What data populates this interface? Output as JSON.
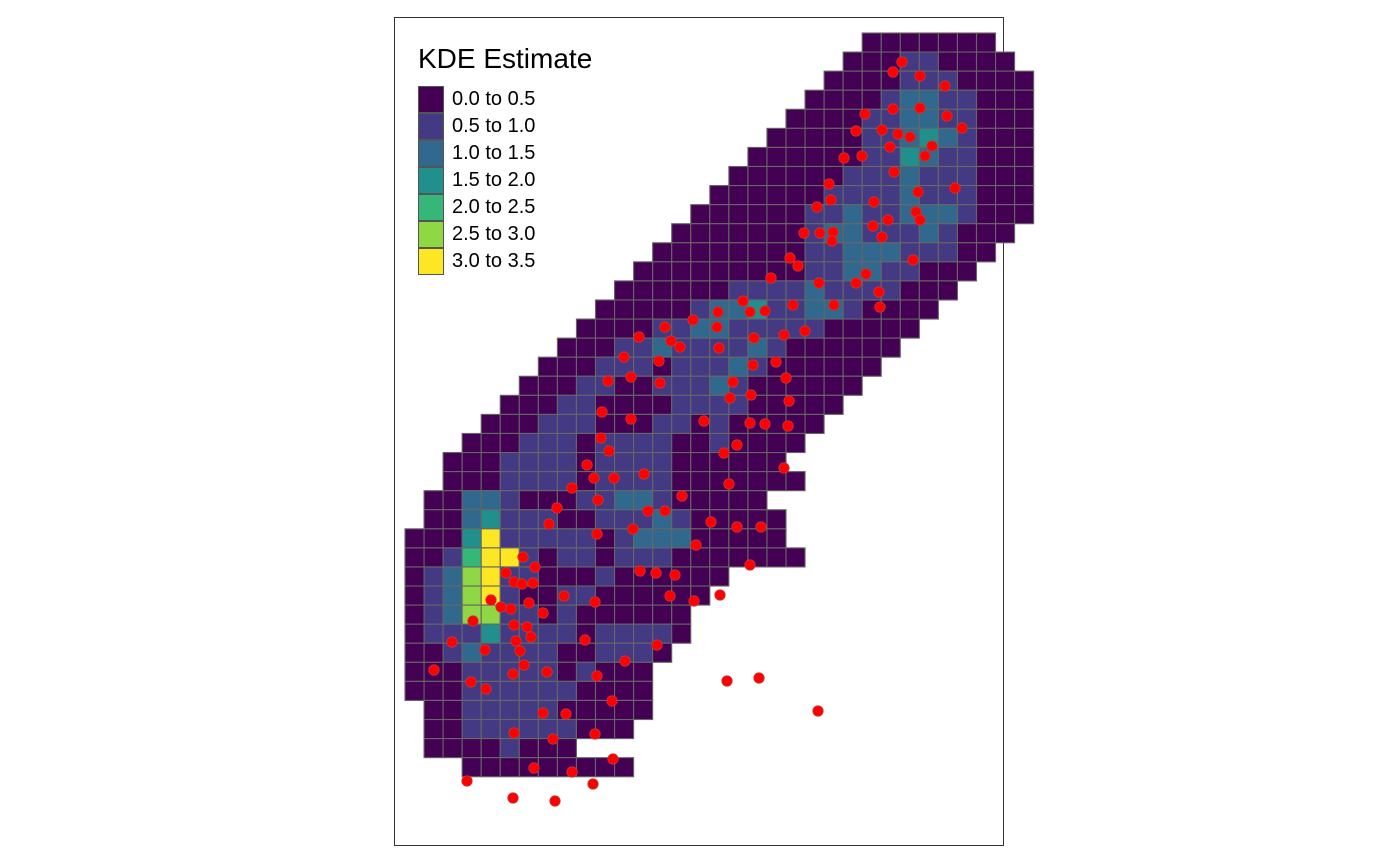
{
  "legend": {
    "title": "KDE Estimate",
    "items": [
      {
        "label": "0.0 to 0.5",
        "color": "#440154"
      },
      {
        "label": "0.5 to 1.0",
        "color": "#443a83"
      },
      {
        "label": "1.0 to 1.5",
        "color": "#31688e"
      },
      {
        "label": "1.5 to 2.0",
        "color": "#21908d"
      },
      {
        "label": "2.0 to 2.5",
        "color": "#35b779"
      },
      {
        "label": "2.5 to 3.0",
        "color": "#8fd744"
      },
      {
        "label": "3.0 to 3.5",
        "color": "#fde725"
      }
    ]
  },
  "map": {
    "grid_border_color": "#666666",
    "point_color": "#ff0000",
    "point_stroke": "#cc3333",
    "rows": [
      {
        "start": 24,
        "cells": "0000000"
      },
      {
        "start": 23,
        "cells": "000110000"
      },
      {
        "start": 22,
        "cells": "00001110000"
      },
      {
        "start": 21,
        "cells": "000012211000"
      },
      {
        "start": 20,
        "cells": "0000112211000"
      },
      {
        "start": 19,
        "cells": "00000112321000"
      },
      {
        "start": 18,
        "cells": "000000113211000"
      },
      {
        "start": 17,
        "cells": "0000001112111000"
      },
      {
        "start": 16,
        "cells": "00000011112111000"
      },
      {
        "start": 15,
        "cells": "000000112112221000"
      },
      {
        "start": 14,
        "cells": "000000012211121000"
      },
      {
        "start": 13,
        "cells": "000000001122211100"
      },
      {
        "start": 12,
        "cells": "000000000112211000"
      },
      {
        "start": 11,
        "cells": "000000111121111000"
      },
      {
        "start": 10,
        "cells": "000001223112210000"
      },
      {
        "start": 9,
        "cells": "000011221111100000"
      },
      {
        "start": 8,
        "cells": "000112111121000000"
      },
      {
        "start": 7,
        "cells": "000111011121000000"
      },
      {
        "start": 6,
        "cells": "000110011121000000"
      },
      {
        "start": 5,
        "cells": "000110000111100000"
      },
      {
        "start": 4,
        "cells": "000111000110100000"
      },
      {
        "start": 3,
        "cells": "000111011110010000"
      },
      {
        "start": 2,
        "cells": "000111101111000000"
      },
      {
        "start": 2,
        "cells": "0001111011110000000"
      },
      {
        "start": 1,
        "cells": "002210001122100000"
      },
      {
        "start": 1,
        "cells": "0023111001112100000"
      },
      {
        "start": 0,
        "cells": "00036111110122200000"
      },
      {
        "start": 0,
        "cells": "001466101101110000000"
      },
      {
        "start": 0,
        "cells": "01256110001000000"
      },
      {
        "start": 0,
        "cells": "0125610011000000"
      },
      {
        "start": 0,
        "cells": "012551101000000"
      },
      {
        "start": 0,
        "cells": "011131111011110"
      },
      {
        "start": 0,
        "cells": "00121111001110"
      },
      {
        "start": 0,
        "cells": "0001111101000"
      },
      {
        "start": 0,
        "cells": "0001111110000"
      },
      {
        "start": 1,
        "cells": "001111100000"
      },
      {
        "start": 1,
        "cells": "00111111000"
      },
      {
        "start": 1,
        "cells": "00001000"
      },
      {
        "start": 3,
        "cells": "000000000"
      }
    ],
    "points": [
      [
        902,
        62
      ],
      [
        893,
        72
      ],
      [
        920,
        76
      ],
      [
        945,
        86
      ],
      [
        893,
        109
      ],
      [
        920,
        108
      ],
      [
        865,
        114
      ],
      [
        947,
        116
      ],
      [
        856,
        131
      ],
      [
        882,
        130
      ],
      [
        898,
        134
      ],
      [
        910,
        137
      ],
      [
        962,
        128
      ],
      [
        890,
        147
      ],
      [
        932,
        146
      ],
      [
        862,
        156
      ],
      [
        844,
        158
      ],
      [
        925,
        156
      ],
      [
        894,
        172
      ],
      [
        829,
        184
      ],
      [
        918,
        192
      ],
      [
        955,
        188
      ],
      [
        831,
        200
      ],
      [
        874,
        202
      ],
      [
        817,
        207
      ],
      [
        916,
        212
      ],
      [
        888,
        220
      ],
      [
        920,
        220
      ],
      [
        873,
        226
      ],
      [
        804,
        233
      ],
      [
        820,
        233
      ],
      [
        833,
        232
      ],
      [
        882,
        237
      ],
      [
        832,
        241
      ],
      [
        790,
        258
      ],
      [
        913,
        260
      ],
      [
        798,
        266
      ],
      [
        866,
        274
      ],
      [
        771,
        278
      ],
      [
        856,
        283
      ],
      [
        819,
        283
      ],
      [
        879,
        292
      ],
      [
        743,
        301
      ],
      [
        718,
        312
      ],
      [
        750,
        312
      ],
      [
        765,
        311
      ],
      [
        793,
        305
      ],
      [
        834,
        305
      ],
      [
        880,
        307
      ],
      [
        693,
        320
      ],
      [
        665,
        327
      ],
      [
        717,
        327
      ],
      [
        639,
        337
      ],
      [
        671,
        341
      ],
      [
        754,
        338
      ],
      [
        784,
        335
      ],
      [
        805,
        331
      ],
      [
        680,
        347
      ],
      [
        719,
        348
      ],
      [
        624,
        357
      ],
      [
        659,
        361
      ],
      [
        776,
        362
      ],
      [
        753,
        365
      ],
      [
        631,
        377
      ],
      [
        608,
        381
      ],
      [
        660,
        383
      ],
      [
        733,
        382
      ],
      [
        786,
        378
      ],
      [
        730,
        398
      ],
      [
        751,
        395
      ],
      [
        789,
        401
      ],
      [
        602,
        412
      ],
      [
        631,
        419
      ],
      [
        704,
        421
      ],
      [
        750,
        423
      ],
      [
        765,
        424
      ],
      [
        788,
        426
      ],
      [
        601,
        438
      ],
      [
        737,
        445
      ],
      [
        609,
        451
      ],
      [
        724,
        453
      ],
      [
        587,
        465
      ],
      [
        644,
        474
      ],
      [
        594,
        478
      ],
      [
        614,
        478
      ],
      [
        784,
        468
      ],
      [
        729,
        484
      ],
      [
        572,
        488
      ],
      [
        682,
        496
      ],
      [
        598,
        500
      ],
      [
        557,
        508
      ],
      [
        648,
        511
      ],
      [
        665,
        511
      ],
      [
        549,
        524
      ],
      [
        711,
        522
      ],
      [
        737,
        527
      ],
      [
        761,
        527
      ],
      [
        633,
        529
      ],
      [
        597,
        534
      ],
      [
        696,
        545
      ],
      [
        523,
        557
      ],
      [
        535,
        567
      ],
      [
        506,
        573
      ],
      [
        514,
        582
      ],
      [
        522,
        584
      ],
      [
        533,
        583
      ],
      [
        640,
        571
      ],
      [
        656,
        573
      ],
      [
        675,
        575
      ],
      [
        750,
        565
      ],
      [
        491,
        600
      ],
      [
        501,
        607
      ],
      [
        511,
        609
      ],
      [
        529,
        603
      ],
      [
        543,
        613
      ],
      [
        564,
        596
      ],
      [
        595,
        602
      ],
      [
        670,
        596
      ],
      [
        694,
        601
      ],
      [
        720,
        595
      ],
      [
        473,
        621
      ],
      [
        514,
        625
      ],
      [
        527,
        627
      ],
      [
        531,
        637
      ],
      [
        516,
        641
      ],
      [
        452,
        642
      ],
      [
        485,
        650
      ],
      [
        520,
        651
      ],
      [
        585,
        640
      ],
      [
        657,
        645
      ],
      [
        524,
        665
      ],
      [
        547,
        672
      ],
      [
        513,
        674
      ],
      [
        434,
        670
      ],
      [
        625,
        661
      ],
      [
        597,
        676
      ],
      [
        471,
        682
      ],
      [
        486,
        689
      ],
      [
        727,
        681
      ],
      [
        759,
        678
      ],
      [
        612,
        701
      ],
      [
        543,
        713
      ],
      [
        566,
        714
      ],
      [
        818,
        711
      ],
      [
        514,
        733
      ],
      [
        553,
        739
      ],
      [
        595,
        734
      ],
      [
        613,
        759
      ],
      [
        534,
        768
      ],
      [
        572,
        772
      ],
      [
        467,
        781
      ],
      [
        593,
        784
      ],
      [
        513,
        798
      ],
      [
        555,
        801
      ]
    ]
  }
}
